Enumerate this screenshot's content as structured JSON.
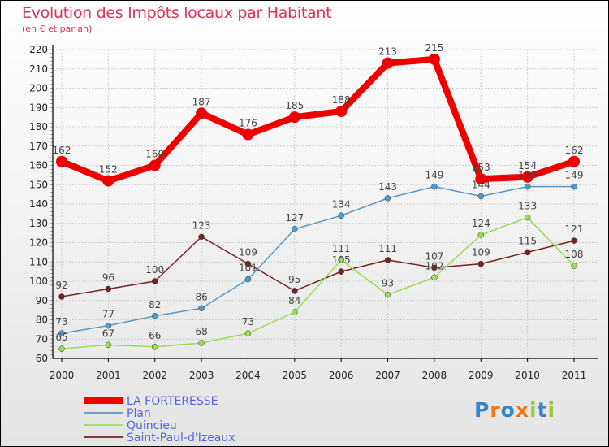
{
  "header": {
    "title": "Evolution des Impôts locaux par Habitant",
    "subtitle": "(en € et par an)"
  },
  "colors": {
    "la_forteresse": "#ee0000",
    "plan": "#5599cc",
    "quincieu": "#99dd55",
    "saint_paul": "#772222",
    "axis": "#000000",
    "grid": "#cccccc"
  },
  "chart_data": {
    "type": "line",
    "title": "Evolution des Impôts locaux par Habitant",
    "subtitle": "(en € et par an)",
    "xlabel": "",
    "ylabel": "",
    "x": [
      "2000",
      "2001",
      "2002",
      "2003",
      "2004",
      "2005",
      "2006",
      "2007",
      "2008",
      "2009",
      "2010",
      "2011"
    ],
    "ylim": [
      60,
      220
    ],
    "yticks": [
      60,
      70,
      80,
      90,
      100,
      110,
      120,
      130,
      140,
      150,
      160,
      170,
      180,
      190,
      200,
      210,
      220
    ],
    "grid": true,
    "legend_position": "bottom-left",
    "series": [
      {
        "name": "LA FORTERESSE",
        "color": "#ee0000",
        "values": [
          162,
          152,
          160,
          187,
          176,
          185,
          188,
          213,
          215,
          153,
          154,
          162
        ]
      },
      {
        "name": "Plan",
        "color": "#5599cc",
        "values": [
          73,
          77,
          82,
          86,
          101,
          127,
          134,
          143,
          149,
          144,
          149,
          149
        ]
      },
      {
        "name": "Quincieu",
        "color": "#99dd55",
        "values": [
          65,
          67,
          66,
          68,
          73,
          84,
          111,
          93,
          102,
          124,
          133,
          108
        ]
      },
      {
        "name": "Saint-Paul-d'Izeaux",
        "color": "#772222",
        "values": [
          92,
          96,
          100,
          123,
          109,
          95,
          105,
          111,
          107,
          109,
          115,
          121
        ]
      }
    ]
  },
  "logo": {
    "letters": [
      "P",
      "r",
      "o",
      "x",
      "i",
      "t",
      "i"
    ],
    "colors": [
      "#3388cc",
      "#ee7711",
      "#3388cc",
      "#ee7711",
      "#99cc33",
      "#3388cc",
      "#99cc33"
    ]
  }
}
